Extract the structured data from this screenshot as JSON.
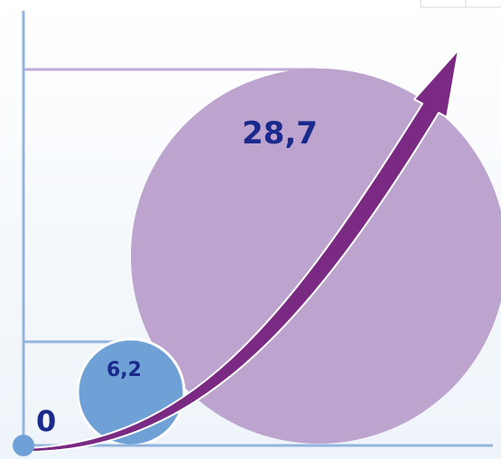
{
  "chart_data": {
    "type": "scatter",
    "title": "",
    "xlabel": "",
    "ylabel": "",
    "origin_label": "0",
    "series": [
      {
        "points": [
          {
            "value": 6.2,
            "label": "6,2",
            "color": "#6fa0d6"
          },
          {
            "value": 28.7,
            "label": "28,7",
            "color": "#bca4cf"
          }
        ]
      }
    ],
    "colors": {
      "axis": "#93b4dc",
      "guide": "#c2a9d6",
      "arrow": "#7a2a82",
      "origin_dot": "#6fa0d6",
      "label": "#1a2a8c"
    },
    "grid": false,
    "legend": "none"
  }
}
